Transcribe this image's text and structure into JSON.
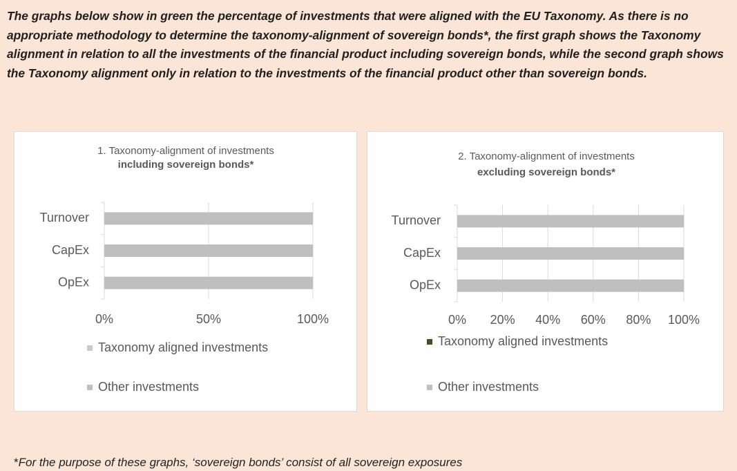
{
  "intro": "The graphs below show in green the percentage of investments that were aligned with the EU Taxonomy. As there is no appropriate methodology to determine the taxonomy-alignment of sovereign bonds*, the first graph shows the Taxonomy alignment in relation to all the investments of the financial product including sovereign bonds, while the second graph shows the Taxonomy alignment only in relation to the investments of the financial product other than sovereign bonds.",
  "footnote_mark": "*",
  "footnote": "For the purpose of these graphs, ‘sovereign bonds’ consist of  all sovereign exposures",
  "chart_data": [
    {
      "type": "bar",
      "orientation": "horizontal",
      "stacked": true,
      "title": "1. Taxonomy-alignment of investments",
      "subtitle": "including sovereign bonds*",
      "categories": [
        "Turnover",
        "CapEx",
        "OpEx"
      ],
      "series": [
        {
          "name": "Taxonomy aligned investments",
          "color": "#c9c9c9",
          "values": [
            0,
            0,
            0
          ]
        },
        {
          "name": "Other investments",
          "color": "#bfbfbf",
          "values": [
            100,
            100,
            100
          ]
        }
      ],
      "xlim": [
        0,
        100
      ],
      "xticks": [
        {
          "value": 0,
          "label": "0%"
        },
        {
          "value": 50,
          "label": "50%"
        },
        {
          "value": 100,
          "label": "100%"
        }
      ],
      "grid": true,
      "legend": "bottom"
    },
    {
      "type": "bar",
      "orientation": "horizontal",
      "stacked": true,
      "title": "2. Taxonomy-alignment of investments",
      "subtitle": "excluding sovereign bonds*",
      "categories": [
        "Turnover",
        "CapEx",
        "OpEx"
      ],
      "series": [
        {
          "name": "Taxonomy aligned investments",
          "color": "#375623",
          "values": [
            0,
            0,
            0
          ]
        },
        {
          "name": "Other investments",
          "color": "#bfbfbf",
          "values": [
            100,
            100,
            100
          ]
        }
      ],
      "xlim": [
        0,
        100
      ],
      "xticks": [
        {
          "value": 0,
          "label": "0%"
        },
        {
          "value": 20,
          "label": "20%"
        },
        {
          "value": 40,
          "label": "40%"
        },
        {
          "value": 60,
          "label": "60%"
        },
        {
          "value": 80,
          "label": "80%"
        },
        {
          "value": 100,
          "label": "100%"
        }
      ],
      "grid": true,
      "legend": "bottom"
    }
  ]
}
